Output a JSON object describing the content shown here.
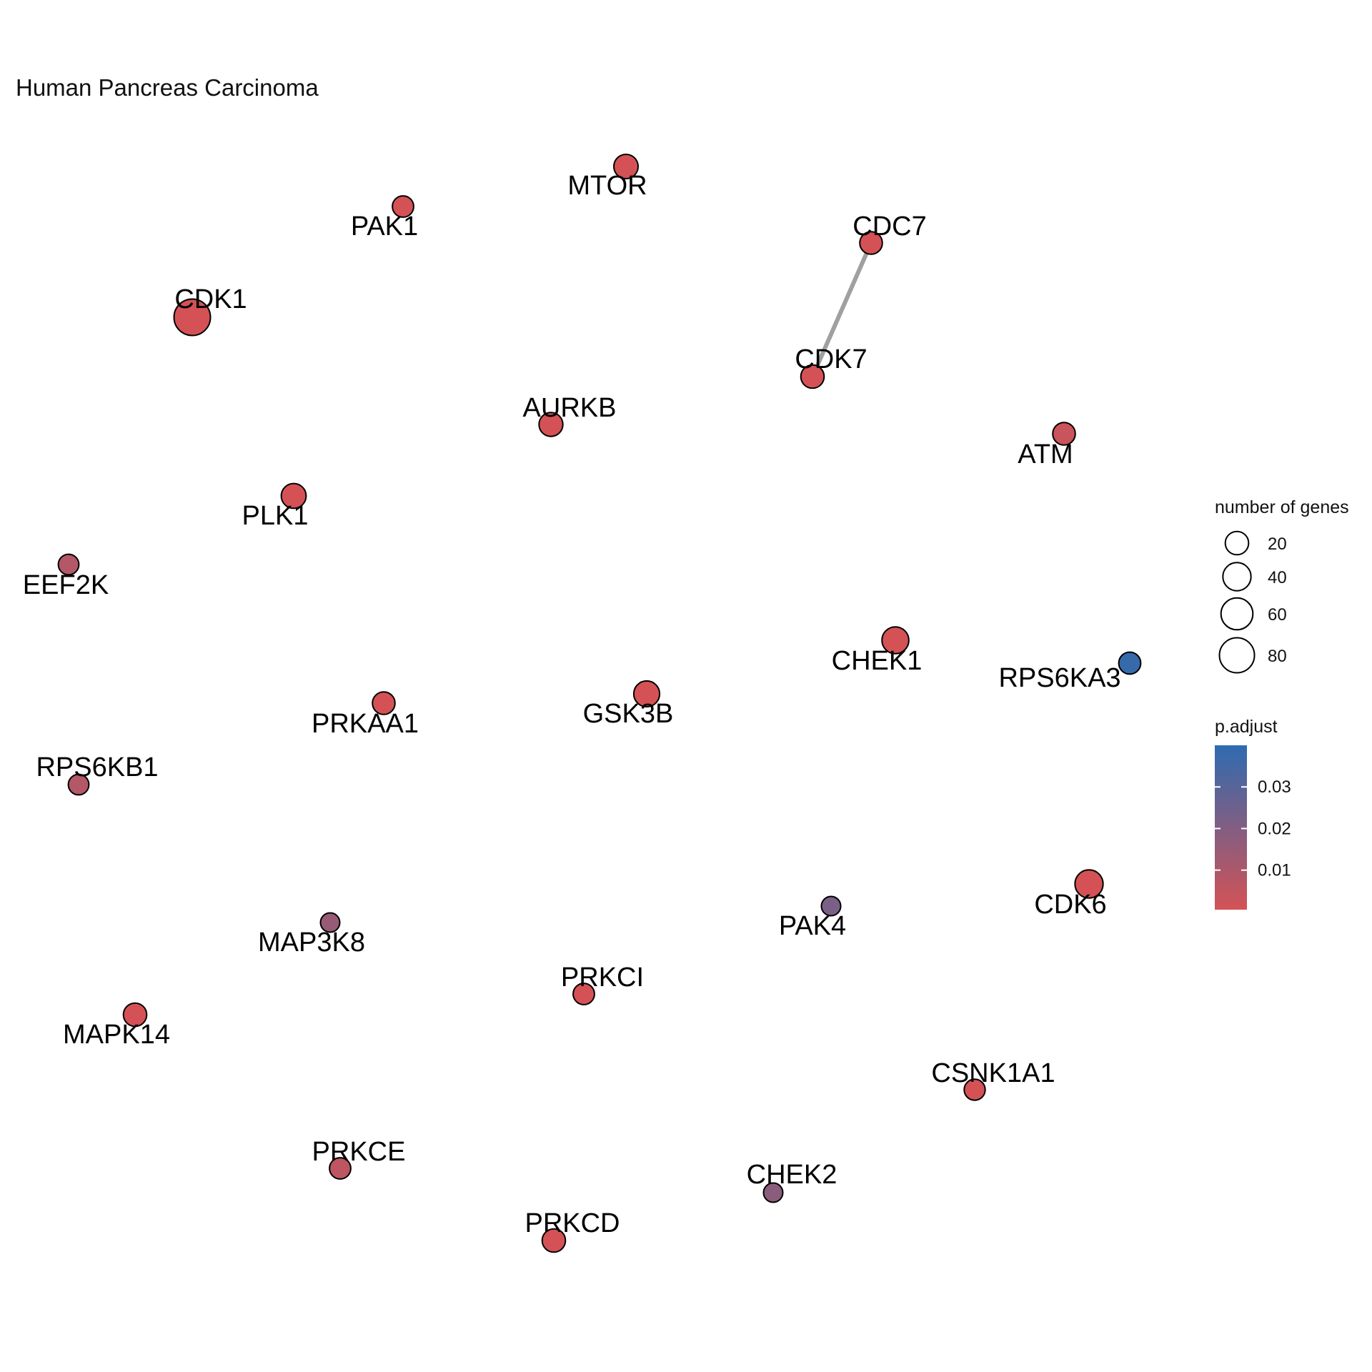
{
  "chart_data": {
    "type": "network",
    "title": "Human Pancreas Carcinoma",
    "nodes": [
      {
        "name": "MTOR",
        "genes": 24,
        "p_adjust": 0.0005
      },
      {
        "name": "PAK1",
        "genes": 14,
        "p_adjust": 0.0005
      },
      {
        "name": "CDC7",
        "genes": 18,
        "p_adjust": 0.0005
      },
      {
        "name": "CDK1",
        "genes": 90,
        "p_adjust": 0.0005
      },
      {
        "name": "CDK7",
        "genes": 20,
        "p_adjust": 0.0005
      },
      {
        "name": "AURKB",
        "genes": 22,
        "p_adjust": 0.0005
      },
      {
        "name": "ATM",
        "genes": 18,
        "p_adjust": 0.003
      },
      {
        "name": "PLK1",
        "genes": 26,
        "p_adjust": 0.0005
      },
      {
        "name": "EEF2K",
        "genes": 12,
        "p_adjust": 0.008
      },
      {
        "name": "CHEK1",
        "genes": 34,
        "p_adjust": 0.0005
      },
      {
        "name": "RPS6KA3",
        "genes": 16,
        "p_adjust": 0.038
      },
      {
        "name": "PRKAA1",
        "genes": 18,
        "p_adjust": 0.0005
      },
      {
        "name": "GSK3B",
        "genes": 30,
        "p_adjust": 0.0005
      },
      {
        "name": "RPS6KB1",
        "genes": 12,
        "p_adjust": 0.008
      },
      {
        "name": "CDK6",
        "genes": 40,
        "p_adjust": 0.0005
      },
      {
        "name": "PAK4",
        "genes": 9,
        "p_adjust": 0.022
      },
      {
        "name": "MAP3K8",
        "genes": 9,
        "p_adjust": 0.015
      },
      {
        "name": "PRKCI",
        "genes": 14,
        "p_adjust": 0.0005
      },
      {
        "name": "MAPK14",
        "genes": 20,
        "p_adjust": 0.0005
      },
      {
        "name": "CSNK1A1",
        "genes": 13,
        "p_adjust": 0.0005
      },
      {
        "name": "PRKCE",
        "genes": 14,
        "p_adjust": 0.006
      },
      {
        "name": "CHEK2",
        "genes": 9,
        "p_adjust": 0.018
      },
      {
        "name": "PRKCD",
        "genes": 20,
        "p_adjust": 0.0005
      }
    ],
    "edges": [
      {
        "source": "CDC7",
        "target": "CDK7"
      }
    ],
    "legend": {
      "size_title": "number of genes",
      "size_breaks": [
        "20",
        "40",
        "60",
        "80"
      ],
      "color_title": "p.adjust",
      "color_breaks": [
        "0.03",
        "0.02",
        "0.01"
      ],
      "color_low": "#d45255",
      "color_high": "#2e6bb0",
      "p_min": 0.0005,
      "p_max": 0.04
    },
    "edge_color": "#a0a0a0",
    "grid": false
  }
}
